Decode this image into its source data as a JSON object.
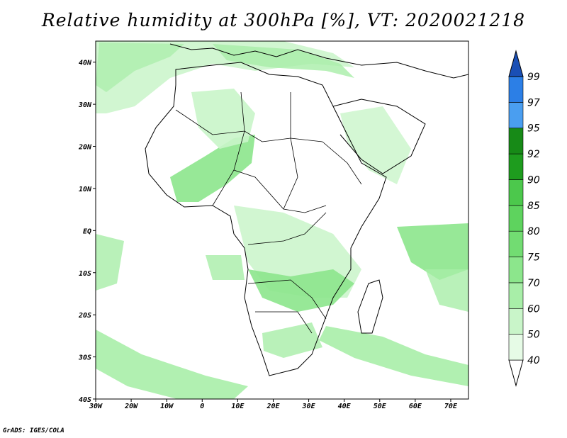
{
  "title": "Relative humidity at 300hPa [%], VT: 2020021218",
  "credit": "GrADS: IGES/COLA",
  "map": {
    "lat_labels": [
      {
        "lat": 40,
        "label": "40N"
      },
      {
        "lat": 30,
        "label": "30N"
      },
      {
        "lat": 20,
        "label": "20N"
      },
      {
        "lat": 10,
        "label": "10N"
      },
      {
        "lat": 0,
        "label": "EQ"
      },
      {
        "lat": -10,
        "label": "10S"
      },
      {
        "lat": -20,
        "label": "20S"
      },
      {
        "lat": -30,
        "label": "30S"
      },
      {
        "lat": -40,
        "label": "40S"
      }
    ],
    "lon_labels": [
      {
        "lon": -30,
        "label": "30W"
      },
      {
        "lon": -20,
        "label": "20W"
      },
      {
        "lon": -10,
        "label": "10W"
      },
      {
        "lon": 0,
        "label": "0"
      },
      {
        "lon": 10,
        "label": "10E"
      },
      {
        "lon": 20,
        "label": "20E"
      },
      {
        "lon": 30,
        "label": "30E"
      },
      {
        "lon": 40,
        "label": "40E"
      },
      {
        "lon": 50,
        "label": "50E"
      },
      {
        "lon": 60,
        "label": "60E"
      },
      {
        "lon": 70,
        "label": "70E"
      }
    ],
    "lon_range": [
      -30,
      75
    ],
    "lat_range": [
      -40,
      45
    ]
  },
  "colorbar": {
    "levels": [
      "40",
      "50",
      "60",
      "70",
      "75",
      "80",
      "85",
      "90",
      "92",
      "95",
      "97",
      "99"
    ],
    "colors": [
      "#e6fbe6",
      "#c9f5c9",
      "#a8eea8",
      "#8ce68c",
      "#72dc72",
      "#5ed35e",
      "#4cc84c",
      "#1e9c1e",
      "#178a17",
      "#4a9ef0",
      "#2c7fe6",
      "#1a5fcf"
    ],
    "end_low_color": "#ffffff",
    "end_high_color": "#1a4fb5"
  }
}
